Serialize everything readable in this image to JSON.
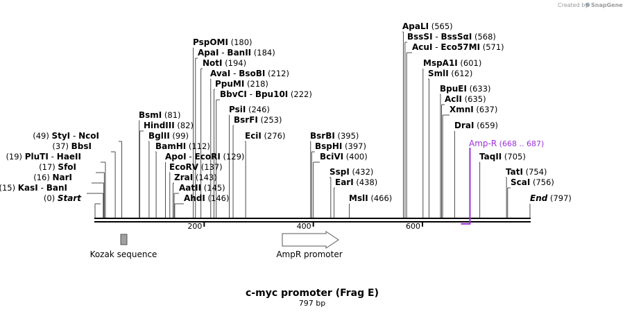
{
  "header": {
    "credit": "Created by",
    "brand": "SnapGene"
  },
  "map": {
    "title": "c-myc promoter (Frag E)",
    "length_label": "797 bp",
    "length": 797,
    "ticks": [
      {
        "pos": 200,
        "label": "200"
      },
      {
        "pos": 400,
        "label": "400"
      },
      {
        "pos": 600,
        "label": "600"
      }
    ],
    "sites": [
      {
        "names": [
          "Start"
        ],
        "pos_label": "(0)",
        "pos": 0,
        "italic": true
      },
      {
        "names": [
          "KasI",
          "BanI"
        ],
        "pos_label": "(15)",
        "pos": 15
      },
      {
        "names": [
          "NarI"
        ],
        "pos_label": "(16)",
        "pos": 16
      },
      {
        "names": [
          "SfoI"
        ],
        "pos_label": "(17)",
        "pos": 17
      },
      {
        "names": [
          "PluTI",
          "HaeII"
        ],
        "pos_label": "(19)",
        "pos": 19
      },
      {
        "names": [
          "BbsI"
        ],
        "pos_label": "(37)",
        "pos": 37
      },
      {
        "names": [
          "StyI",
          "NcoI"
        ],
        "pos_label": "(49)",
        "pos": 49
      },
      {
        "names": [
          "BsmI"
        ],
        "pos_label": "(81)",
        "pos": 81
      },
      {
        "names": [
          "HindIII"
        ],
        "pos_label": "(82)",
        "pos": 82
      },
      {
        "names": [
          "BglII"
        ],
        "pos_label": "(99)",
        "pos": 99
      },
      {
        "names": [
          "BamHI"
        ],
        "pos_label": "(112)",
        "pos": 112
      },
      {
        "names": [
          "ApoI",
          "EcoRI"
        ],
        "pos_label": "(129)",
        "pos": 129
      },
      {
        "names": [
          "EcoRV"
        ],
        "pos_label": "(137)",
        "pos": 137
      },
      {
        "names": [
          "ZraI"
        ],
        "pos_label": "(143)",
        "pos": 143
      },
      {
        "names": [
          "AatII"
        ],
        "pos_label": "(145)",
        "pos": 145
      },
      {
        "names": [
          "AhdI"
        ],
        "pos_label": "(146)",
        "pos": 146
      },
      {
        "names": [
          "PspOMI"
        ],
        "pos_label": "(180)",
        "pos": 180
      },
      {
        "names": [
          "ApaI",
          "BanII"
        ],
        "pos_label": "(184)",
        "pos": 184
      },
      {
        "names": [
          "NotI"
        ],
        "pos_label": "(194)",
        "pos": 194
      },
      {
        "names": [
          "AvaI",
          "BsoBI"
        ],
        "pos_label": "(212)",
        "pos": 212
      },
      {
        "names": [
          "PpuMI"
        ],
        "pos_label": "(218)",
        "pos": 218
      },
      {
        "names": [
          "BbvCI",
          "Bpu10I"
        ],
        "pos_label": "(222)",
        "pos": 222
      },
      {
        "names": [
          "PsiI"
        ],
        "pos_label": "(246)",
        "pos": 246
      },
      {
        "names": [
          "BsrFI"
        ],
        "pos_label": "(253)",
        "pos": 253
      },
      {
        "names": [
          "EciI"
        ],
        "pos_label": "(276)",
        "pos": 276
      },
      {
        "names": [
          "BsrBI"
        ],
        "pos_label": "(395)",
        "pos": 395
      },
      {
        "names": [
          "BspHI"
        ],
        "pos_label": "(397)",
        "pos": 397
      },
      {
        "names": [
          "BciVI"
        ],
        "pos_label": "(400)",
        "pos": 400
      },
      {
        "names": [
          "SspI"
        ],
        "pos_label": "(432)",
        "pos": 432
      },
      {
        "names": [
          "EarI"
        ],
        "pos_label": "(438)",
        "pos": 438
      },
      {
        "names": [
          "MslI"
        ],
        "pos_label": "(466)",
        "pos": 466
      },
      {
        "names": [
          "ApaLI"
        ],
        "pos_label": "(565)",
        "pos": 565
      },
      {
        "names": [
          "BssSI",
          "BssSαI"
        ],
        "pos_label": "(568)",
        "pos": 568
      },
      {
        "names": [
          "AcuI",
          "Eco57MI"
        ],
        "pos_label": "(571)",
        "pos": 571
      },
      {
        "names": [
          "MspA1I"
        ],
        "pos_label": "(601)",
        "pos": 601
      },
      {
        "names": [
          "SmlI"
        ],
        "pos_label": "(612)",
        "pos": 612
      },
      {
        "names": [
          "BpuEI"
        ],
        "pos_label": "(633)",
        "pos": 633
      },
      {
        "names": [
          "AclI"
        ],
        "pos_label": "(635)",
        "pos": 635
      },
      {
        "names": [
          "XmnI"
        ],
        "pos_label": "(637)",
        "pos": 637
      },
      {
        "names": [
          "DraI"
        ],
        "pos_label": "(659)",
        "pos": 659
      },
      {
        "names": [
          "TaqII"
        ],
        "pos_label": "(705)",
        "pos": 705
      },
      {
        "names": [
          "TatI"
        ],
        "pos_label": "(754)",
        "pos": 754
      },
      {
        "names": [
          "ScaI"
        ],
        "pos_label": "(756)",
        "pos": 756
      },
      {
        "names": [
          "End"
        ],
        "pos_label": "(797)",
        "pos": 797,
        "italic": true
      }
    ],
    "amp_r": {
      "name": "Amp-R",
      "range_label": "(668 .. 687)",
      "start": 668,
      "end": 687,
      "color": "#9b30d9"
    },
    "features": [
      {
        "name": "Kozak sequence",
        "start": 46,
        "end": 56,
        "kind": "box",
        "color": "#a0a0a0"
      },
      {
        "name": "AmpR promoter",
        "start": 356,
        "end": 460,
        "kind": "arrow",
        "color": "#ffffff"
      }
    ]
  }
}
